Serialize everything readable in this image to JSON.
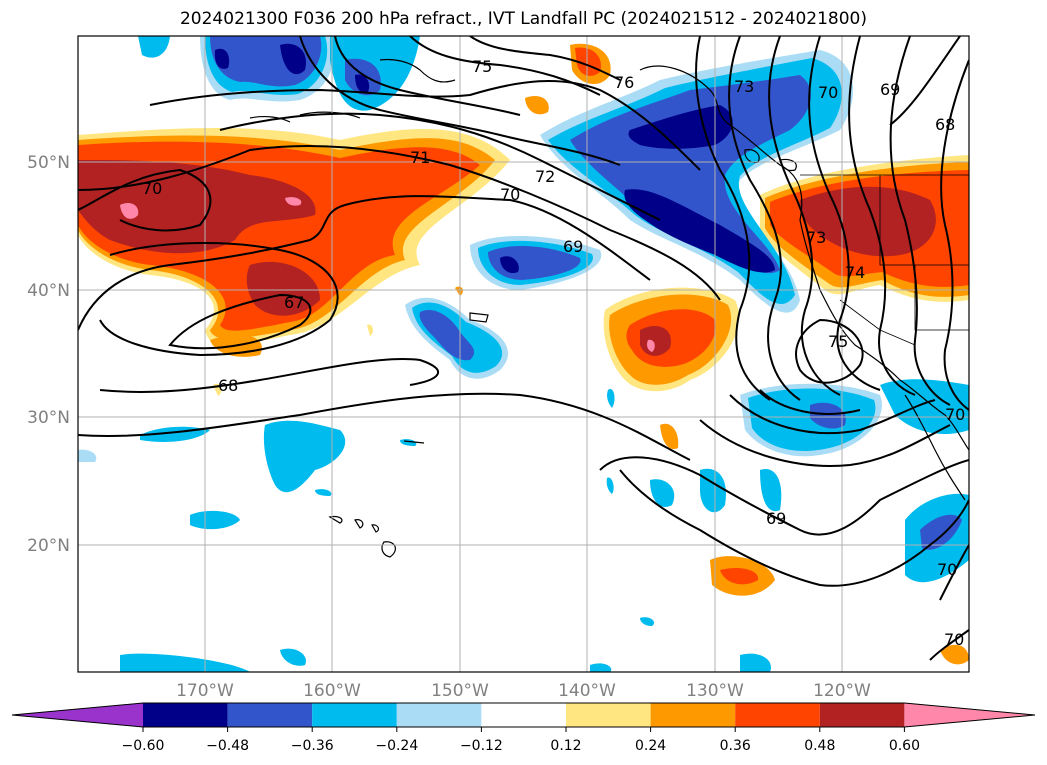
{
  "title": "2024021300 F036 200 hPa refract., IVT Landfall PC (2024021512 - 2024021800)",
  "lat_labels": [
    "50°N",
    "40°N",
    "30°N",
    "20°N"
  ],
  "lon_labels": [
    "170°W",
    "160°W",
    "150°W",
    "140°W",
    "130°W",
    "120°W"
  ],
  "colorbar": {
    "ticks": [
      "−0.60",
      "−0.48",
      "−0.36",
      "−0.24",
      "−0.12",
      "0.12",
      "0.24",
      "0.36",
      "0.48",
      "0.60"
    ],
    "colors": [
      "#9933cc",
      "#000088",
      "#3355cc",
      "#00bbee",
      "#aaddf5",
      "#ffffff",
      "#ffe680",
      "#ff9900",
      "#ff4400",
      "#b22222",
      "#ff88aa"
    ]
  },
  "contour_labels": [
    {
      "text": "75"
    },
    {
      "text": "76"
    },
    {
      "text": "73"
    },
    {
      "text": "70"
    },
    {
      "text": "69"
    },
    {
      "text": "68"
    },
    {
      "text": "71"
    },
    {
      "text": "72"
    },
    {
      "text": "70"
    },
    {
      "text": "70"
    },
    {
      "text": "69"
    },
    {
      "text": "73"
    },
    {
      "text": "74"
    },
    {
      "text": "75"
    },
    {
      "text": "67"
    },
    {
      "text": "68"
    },
    {
      "text": "69"
    },
    {
      "text": "70"
    },
    {
      "text": "70"
    },
    {
      "text": "70"
    }
  ]
}
